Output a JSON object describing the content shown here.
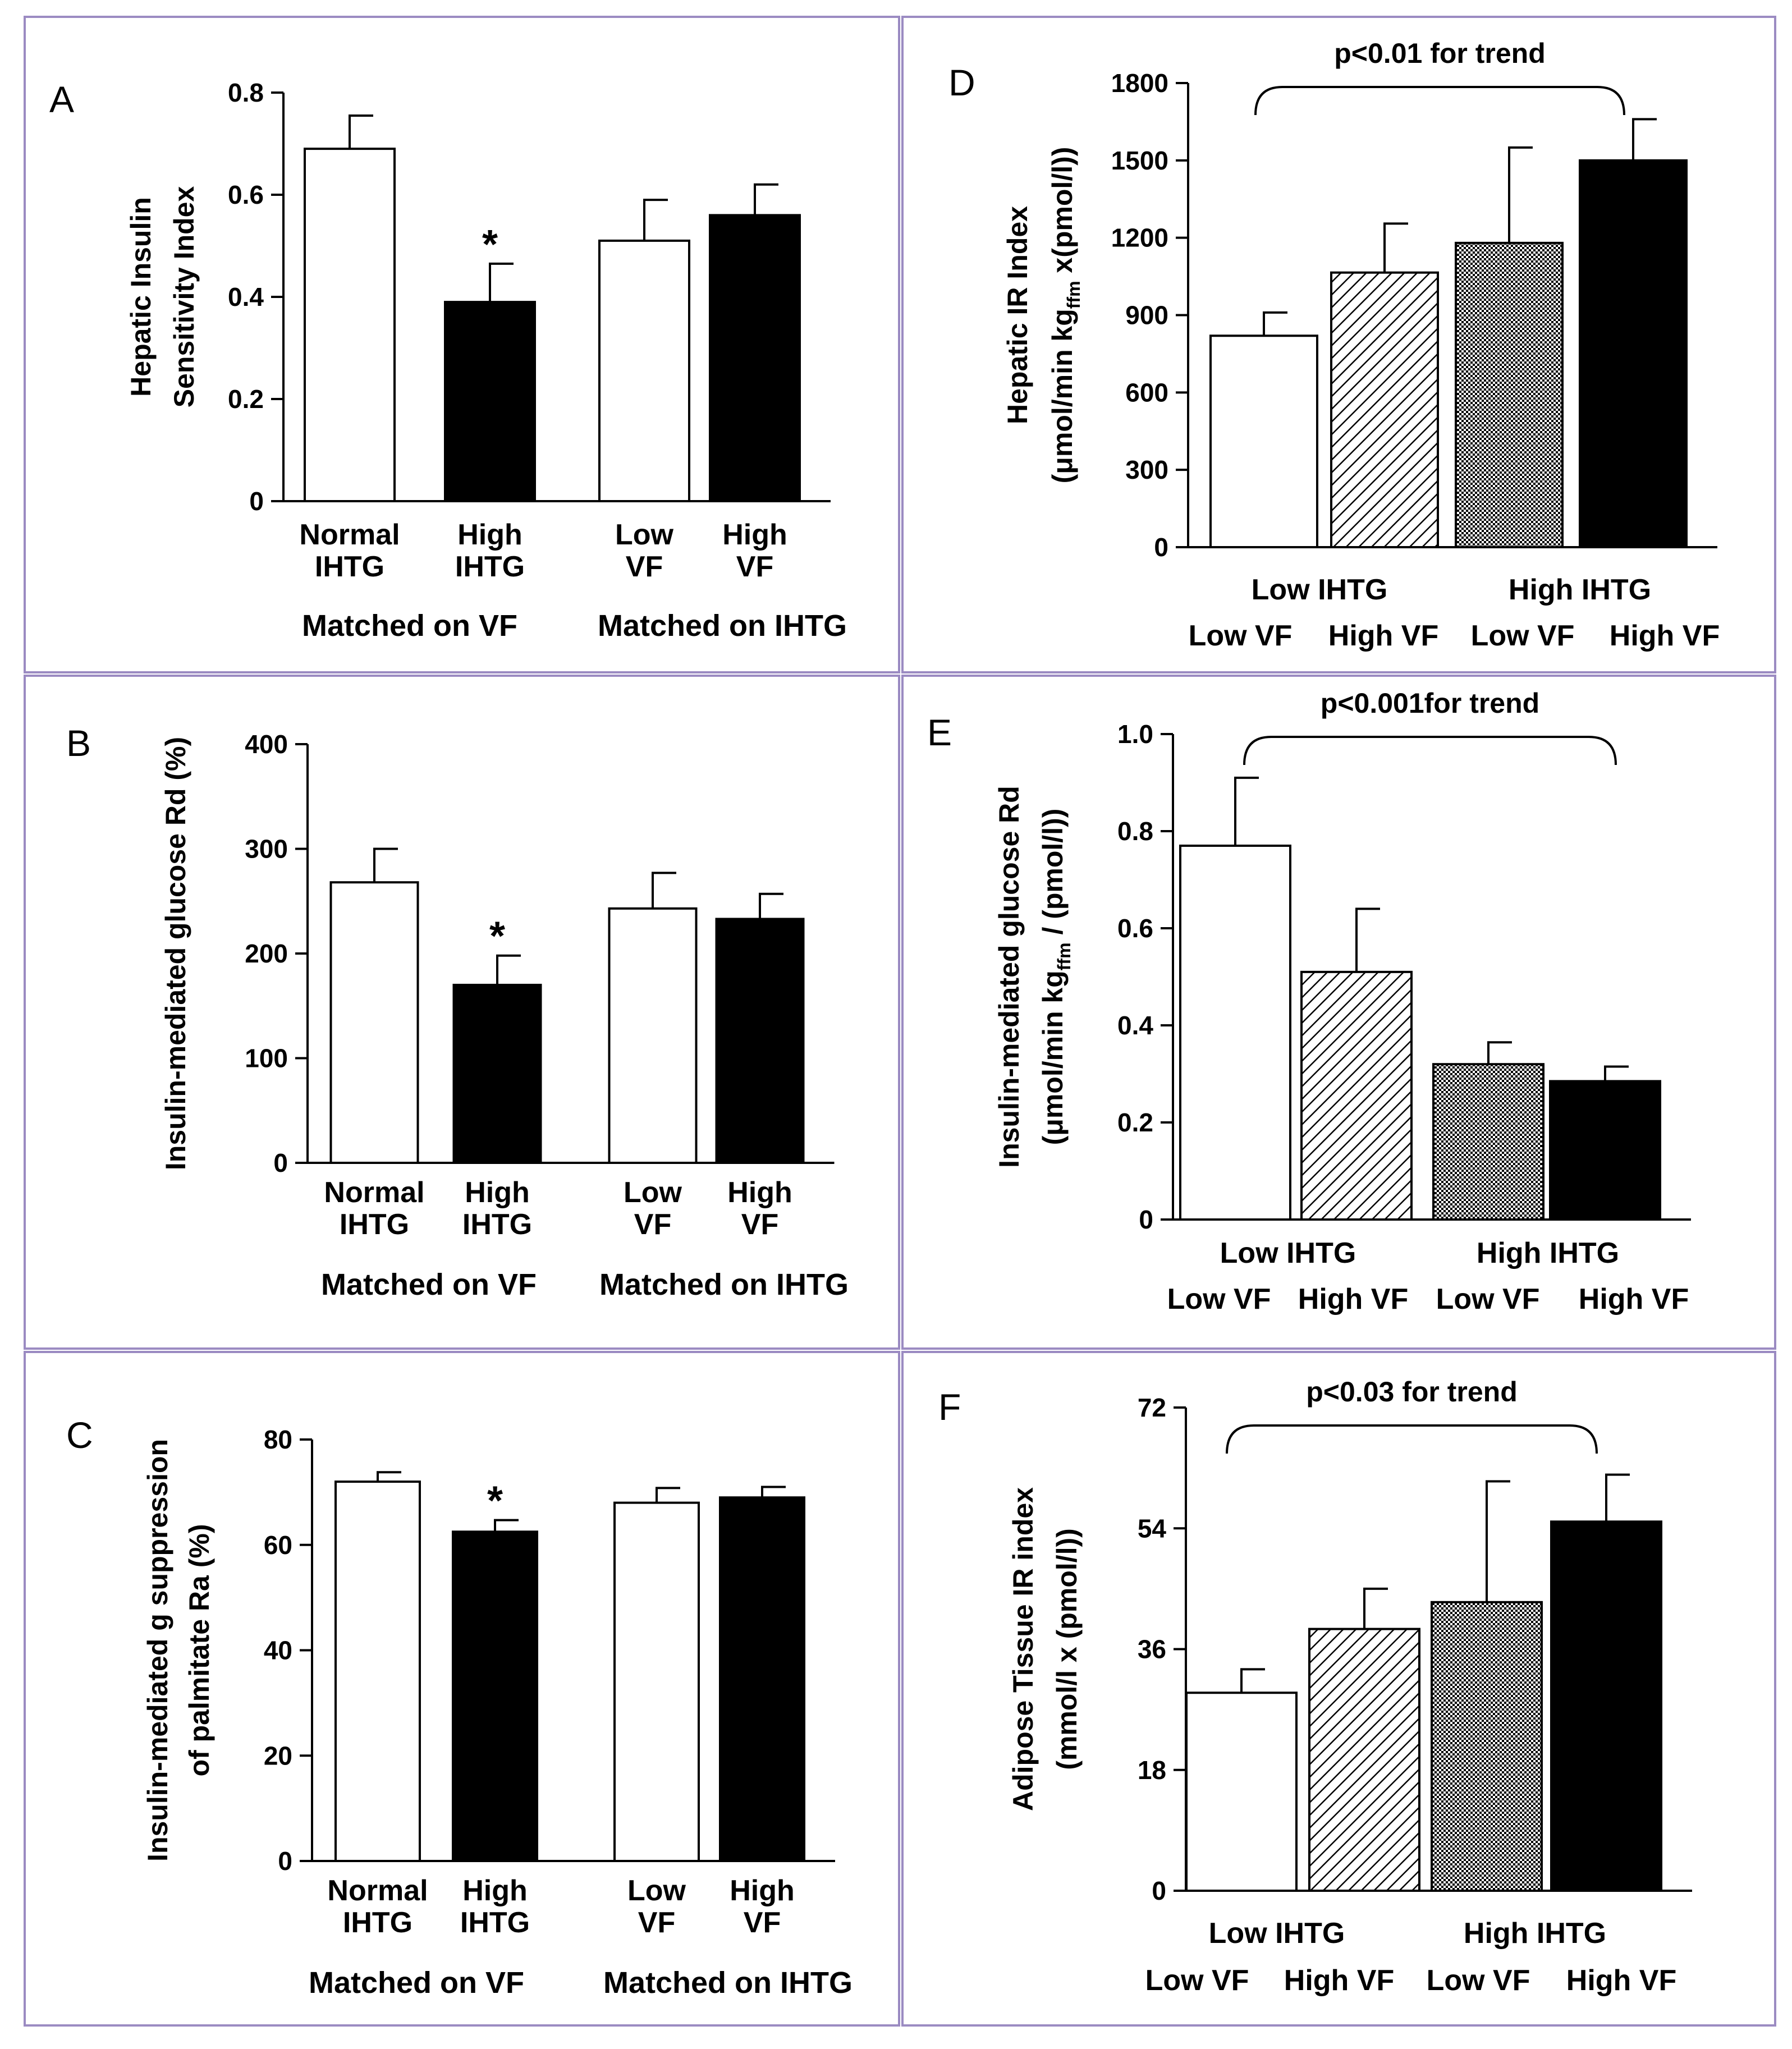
{
  "figure": {
    "panels": [
      "A",
      "B",
      "C",
      "D",
      "E",
      "F"
    ]
  },
  "colors": {
    "border": "#9b8bc2",
    "open_bar": "#ffffff",
    "solid_bar": "#000000",
    "axis": "#000000"
  },
  "chart_data": [
    {
      "id": "A",
      "type": "bar",
      "letter": "A",
      "ylabel_lines": [
        "Hepatic Insulin",
        "Sensitivity Index"
      ],
      "yticks": [
        "0",
        "0.2",
        "0.4",
        "0.6",
        "0.8"
      ],
      "ylim": [
        0,
        0.8
      ],
      "categories": [
        [
          "Normal",
          "IHTG"
        ],
        [
          "High",
          "IHTG"
        ],
        [
          "Low",
          "VF"
        ],
        [
          "High",
          "VF"
        ]
      ],
      "group_labels": [
        "Matched on VF",
        "Matched on IHTG"
      ],
      "values": [
        0.69,
        0.39,
        0.51,
        0.56
      ],
      "errors": [
        0.065,
        0.075,
        0.08,
        0.06
      ],
      "fills": [
        "open",
        "solid",
        "open",
        "solid"
      ],
      "significance": [
        "",
        "*",
        "",
        ""
      ]
    },
    {
      "id": "B",
      "type": "bar",
      "letter": "B",
      "ylabel_lines": [
        "Insulin-mediated glucose Rd (%)"
      ],
      "yticks": [
        "0",
        "100",
        "200",
        "300",
        "400"
      ],
      "ylim": [
        0,
        400
      ],
      "categories": [
        [
          "Normal",
          "IHTG"
        ],
        [
          "High",
          "IHTG"
        ],
        [
          "Low",
          "VF"
        ],
        [
          "High",
          "VF"
        ]
      ],
      "group_labels": [
        "Matched on VF",
        "Matched on IHTG"
      ],
      "values": [
        268,
        170,
        243,
        233
      ],
      "errors": [
        32,
        28,
        34,
        24
      ],
      "fills": [
        "open",
        "solid",
        "open",
        "solid"
      ],
      "significance": [
        "",
        "*",
        "",
        ""
      ]
    },
    {
      "id": "C",
      "type": "bar",
      "letter": "C",
      "ylabel_lines": [
        "Insulin-mediated g suppression",
        "of palmitate Ra (%)"
      ],
      "yticks": [
        "0",
        "20",
        "40",
        "60",
        "80"
      ],
      "ylim": [
        0,
        80
      ],
      "categories": [
        [
          "Normal",
          "IHTG"
        ],
        [
          "High",
          "IHTG"
        ],
        [
          "Low",
          "VF"
        ],
        [
          "High",
          "VF"
        ]
      ],
      "group_labels": [
        "Matched on VF",
        "Matched on IHTG"
      ],
      "values": [
        72,
        62.5,
        68,
        69
      ],
      "errors": [
        1.8,
        2.2,
        2.8,
        2.0
      ],
      "fills": [
        "open",
        "solid",
        "open",
        "solid"
      ],
      "significance": [
        "",
        "*",
        "",
        ""
      ]
    },
    {
      "id": "D",
      "type": "bar",
      "letter": "D",
      "trend": "p<0.01 for trend",
      "ylabel_main": "Hepatic IR Index",
      "ylabel_unit": [
        "(μmol/min kg",
        "ffm",
        " x(pmol/l))"
      ],
      "yticks": [
        "0",
        "300",
        "600",
        "900",
        "1200",
        "1500",
        "1800"
      ],
      "ylim": [
        0,
        1800
      ],
      "group_labels": [
        "Low IHTG",
        "High IHTG"
      ],
      "categories": [
        "Low VF",
        "High VF",
        "Low VF",
        "High VF"
      ],
      "values": [
        820,
        1065,
        1180,
        1500
      ],
      "errors": [
        90,
        190,
        370,
        160
      ],
      "fills": [
        "open",
        "hatch",
        "checker",
        "solid"
      ]
    },
    {
      "id": "E",
      "type": "bar",
      "letter": "E",
      "trend": "p<0.001for trend",
      "ylabel_main": "Insulin-mediated glucose Rd",
      "ylabel_unit": [
        "(μmol/min kg",
        "ffm",
        " / (pmol/l))"
      ],
      "yticks": [
        "0",
        "0.2",
        "0.4",
        "0.6",
        "0.8",
        "1.0"
      ],
      "ylim": [
        0,
        1.0
      ],
      "group_labels": [
        "Low IHTG",
        "High IHTG"
      ],
      "categories": [
        "Low VF",
        "High VF",
        "Low VF",
        "High VF"
      ],
      "values": [
        0.77,
        0.51,
        0.32,
        0.285
      ],
      "errors": [
        0.14,
        0.13,
        0.045,
        0.03
      ],
      "fills": [
        "open",
        "hatch",
        "checker",
        "solid"
      ]
    },
    {
      "id": "F",
      "type": "bar",
      "letter": "F",
      "trend": "p<0.03 for trend",
      "ylabel_main": "Adipose Tissue IR  index",
      "ylabel_unit": [
        "(mmol/l x (pmol/l))"
      ],
      "yticks": [
        "0",
        "18",
        "36",
        "54",
        "72"
      ],
      "ylim": [
        0,
        72
      ],
      "group_labels": [
        "Low IHTG",
        "High IHTG"
      ],
      "categories": [
        "Low VF",
        "High VF",
        "Low VF",
        "High VF"
      ],
      "values": [
        29.5,
        39,
        43,
        55
      ],
      "errors": [
        3.5,
        6,
        18,
        7
      ],
      "fills": [
        "open",
        "hatch",
        "checker",
        "solid"
      ]
    }
  ]
}
